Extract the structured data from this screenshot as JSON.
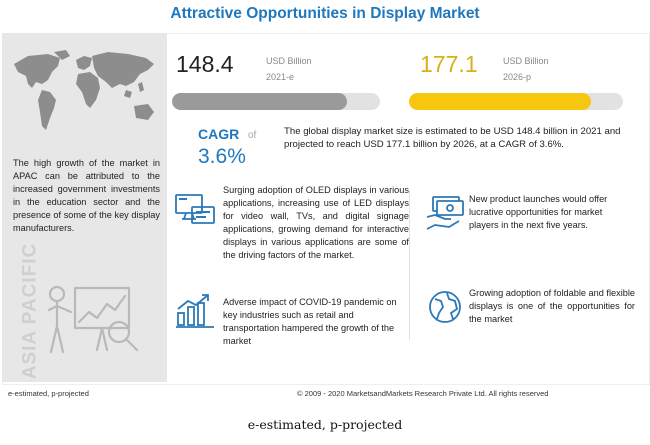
{
  "title": "Attractive Opportunities in Display Market",
  "left_panel": {
    "text": "The high growth of the market in APAC can be attributed to the increased government investments in the education sector and the presence of some of the key display manufacturers.",
    "region_label": "ASIA PACIFIC"
  },
  "stats": [
    {
      "value": "148.4",
      "unit": "USD Billion",
      "year": "2021-e",
      "fill_fraction": 0.84,
      "color": "#9a9a9a"
    },
    {
      "value": "177.1",
      "unit": "USD Billion",
      "year": "2026-p",
      "fill_fraction": 0.85,
      "color": "#f7c70f"
    }
  ],
  "cagr": {
    "label": "CAGR",
    "of": "of",
    "value": "3.6%"
  },
  "summary": "The global display market size is estimated to be USD 148.4 billion in 2021 and projected to reach USD 177.1 billion by 2026, at a CAGR of 3.6%.",
  "items": [
    {
      "icon": "oled-display-icon",
      "text": "Surging adoption of OLED displays in various applications, increasing use of LED displays for video wall, TVs, and digital signage applications, growing demand for interactive displays in various applications are some of the driving factors of the market."
    },
    {
      "icon": "money-hand-icon",
      "text": "New product launches would offer lucrative opportunities for market players in the next five years."
    },
    {
      "icon": "declining-chart-icon",
      "text": "Adverse impact of COVID-19 pandemic on key industries such as retail and transportation hampered the growth of the market"
    },
    {
      "icon": "globe-icon",
      "text": "Growing adoption of foldable and flexible displays is one of the opportunities for the market"
    }
  ],
  "footer": {
    "legend": "e-estimated, p-projected",
    "copyright": "© 2009 - 2020 MarketsandMarkets Research Private Ltd. All rights reserved"
  },
  "caption": "e-estimated, p-projected"
}
